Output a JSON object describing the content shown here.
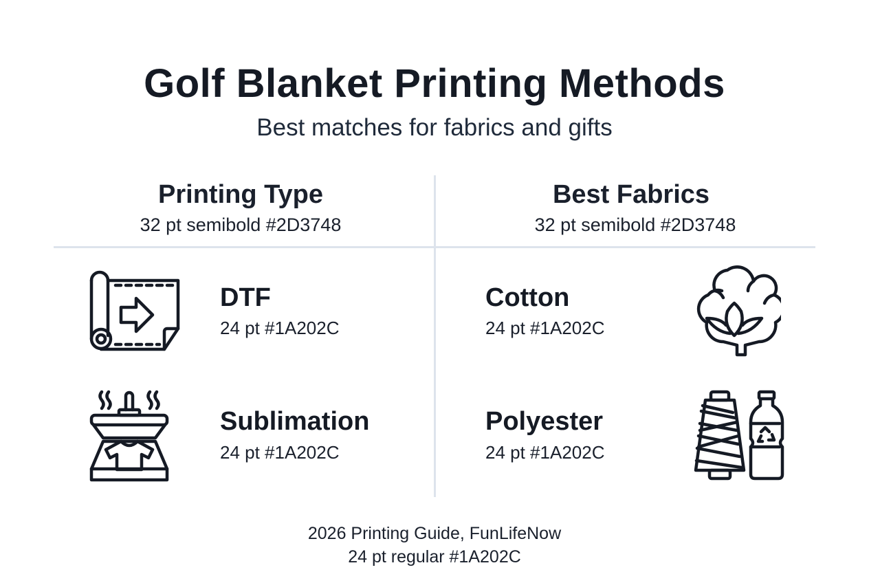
{
  "header": {
    "title": "Golf Blanket Printing Methods",
    "subtitle": "Best matches for fabrics and gifts"
  },
  "columns": [
    {
      "heading": "Printing Type",
      "style_note": "32 pt semibold #2D3748"
    },
    {
      "heading": "Best Fabrics",
      "style_note": "32 pt semibold #2D3748"
    }
  ],
  "printing_types": [
    {
      "label": "DTF",
      "style_note": "24 pt #1A202C",
      "icon": "film-roll-arrow-icon"
    },
    {
      "label": "Sublimation",
      "style_note": "24 pt #1A202C",
      "icon": "heat-press-icon"
    }
  ],
  "fabrics": [
    {
      "label": "Cotton",
      "style_note": "24 pt #1A202C",
      "icon": "cotton-boll-icon"
    },
    {
      "label": "Polyester",
      "style_note": "24 pt #1A202C",
      "icon": "thread-spool-bottle-icon"
    }
  ],
  "footer": {
    "line1": "2026 Printing Guide, FunLifeNow",
    "line2": "24 pt regular #1A202C"
  },
  "colors": {
    "text": "#1A202C",
    "divider": "#DDE3EC",
    "background": "#FFFFFF"
  }
}
